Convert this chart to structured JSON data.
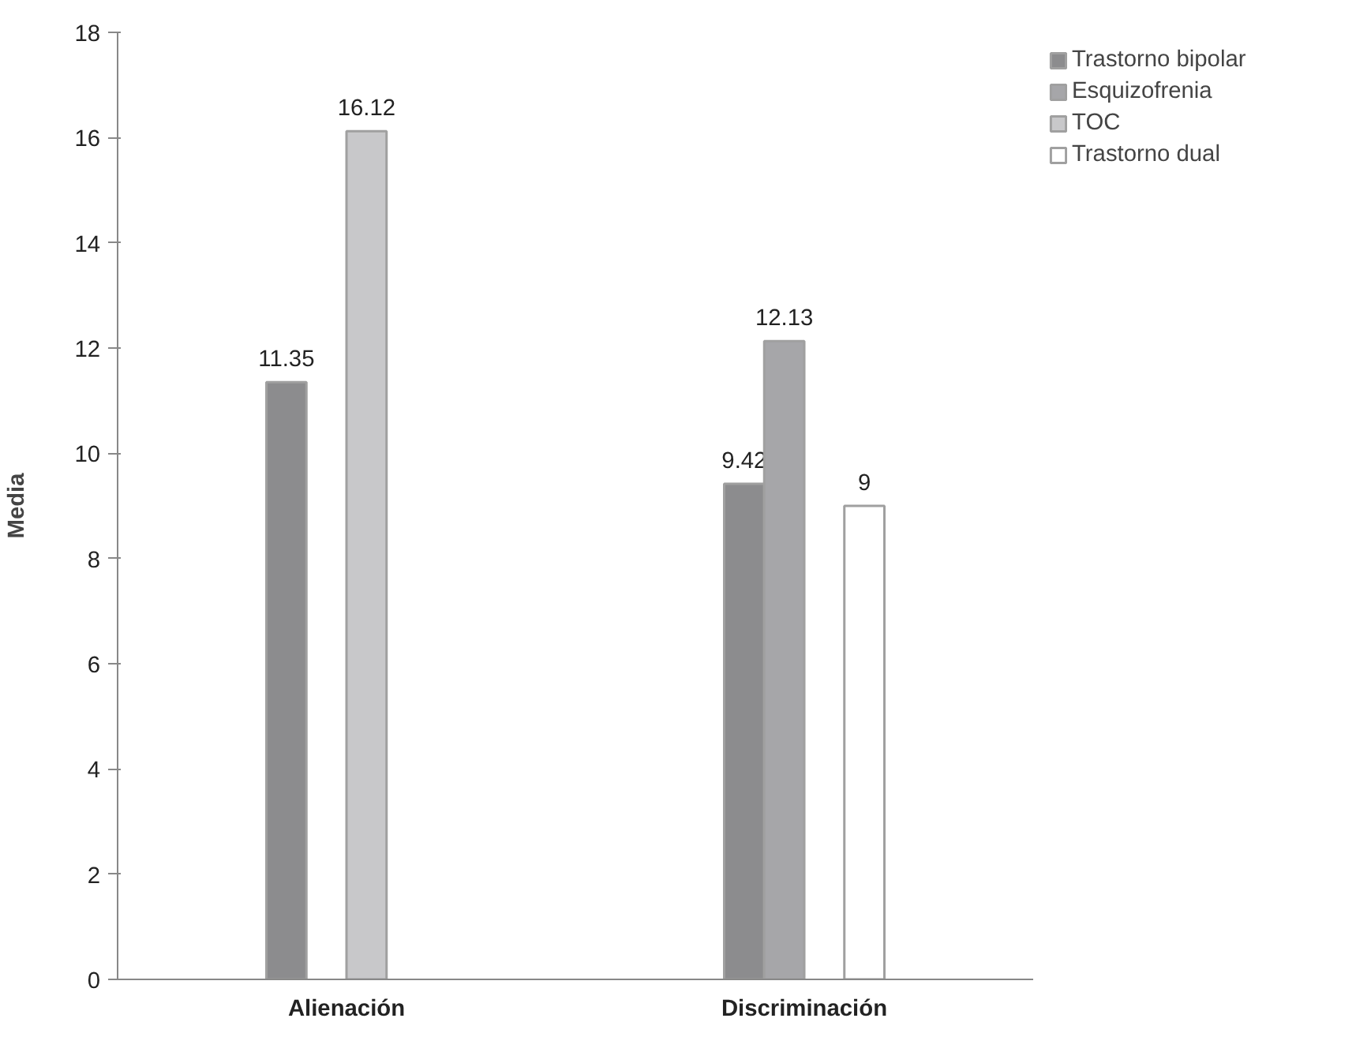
{
  "chart_data": {
    "type": "bar",
    "ylabel": "Media",
    "categories": [
      "Alienación",
      "Discriminación"
    ],
    "series": [
      {
        "name": "Trastorno bipolar",
        "color": "#8c8c8e",
        "values": [
          11.35,
          9.42
        ]
      },
      {
        "name": "Esquizofrenia",
        "color": "#a6a6a9",
        "values": [
          null,
          12.13
        ]
      },
      {
        "name": "TOC",
        "color": "#c8c8ca",
        "values": [
          16.12,
          null
        ]
      },
      {
        "name": "Trastorno dual",
        "color": "#ffffff",
        "values": [
          null,
          9
        ]
      }
    ],
    "ylim": [
      0,
      18
    ],
    "yticks": [
      0,
      2,
      4,
      6,
      8,
      10,
      12,
      14,
      16,
      18
    ],
    "grid": false,
    "legend": "top right",
    "data_labels": true
  }
}
